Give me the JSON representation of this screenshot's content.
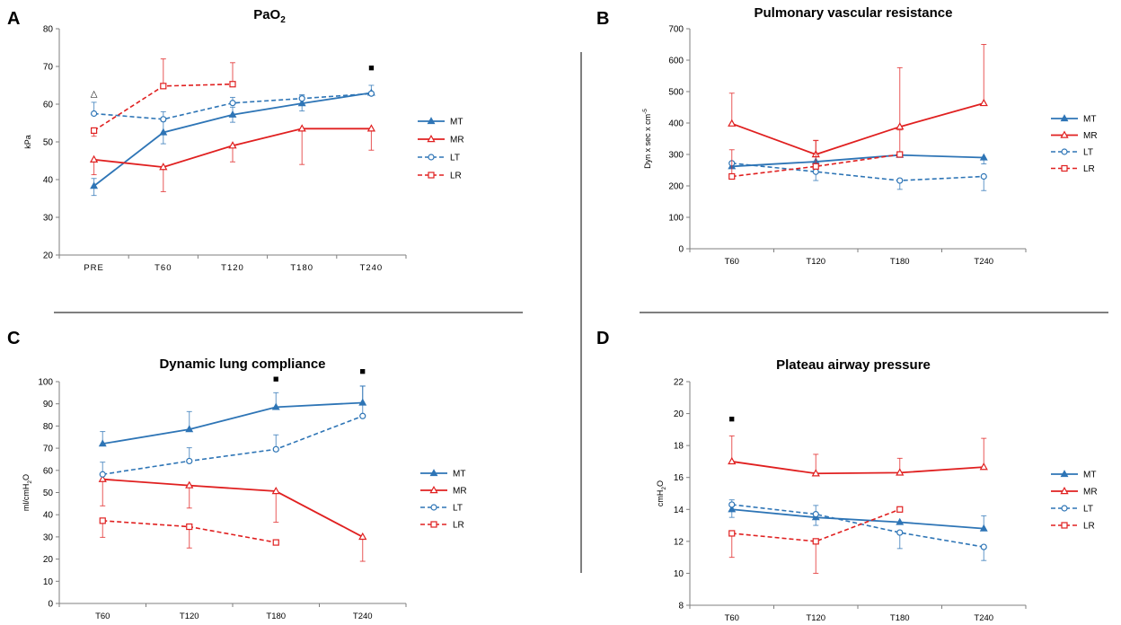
{
  "chart_data": [
    {
      "panel": "A",
      "type": "line",
      "title_main": "PaO",
      "title_sub": "2",
      "ylabel": "kPa",
      "xlabel": "",
      "categories": [
        "PRE",
        "T60",
        "T120",
        "T180",
        "T240"
      ],
      "ylim": [
        20,
        80
      ],
      "ytick_step": 10,
      "series": [
        {
          "name": "MT",
          "color": "#2e75b6",
          "dash": false,
          "marker": "triangle-filled",
          "values": [
            38.3,
            52.5,
            57.2,
            60.2,
            63.0
          ],
          "err_up": [
            2.0,
            3.0,
            2.0,
            2.0,
            2.0
          ],
          "err_down": [
            2.5,
            3.0,
            2.0,
            2.0,
            0
          ]
        },
        {
          "name": "MR",
          "color": "#e02020",
          "dash": false,
          "marker": "triangle-open",
          "values": [
            45.3,
            43.3,
            49.0,
            53.5,
            53.5
          ],
          "err_up": [
            0,
            0,
            0,
            0,
            0
          ],
          "err_down": [
            4.0,
            6.5,
            4.3,
            9.5,
            5.7
          ]
        },
        {
          "name": "LT",
          "color": "#2e75b6",
          "dash": true,
          "marker": "circle-open",
          "values": [
            57.5,
            56.0,
            60.3,
            61.5,
            62.8
          ],
          "err_up": [
            3.0,
            2.0,
            1.5,
            1.0,
            0.5
          ],
          "err_down": [
            0,
            0,
            0,
            0,
            0
          ]
        },
        {
          "name": "LR",
          "color": "#e02020",
          "dash": true,
          "marker": "square-open",
          "values": [
            53.0,
            64.8,
            65.3,
            null,
            null
          ],
          "err_up": [
            0,
            7.2,
            5.7,
            0,
            0
          ],
          "err_down": [
            1.5,
            0,
            0,
            0,
            0
          ]
        }
      ],
      "annotations": [
        {
          "symbol": "△",
          "category_index": 0,
          "y_value": 63.0
        },
        {
          "symbol": "■",
          "category_index": 4,
          "y_value": 69.8
        }
      ]
    },
    {
      "panel": "B",
      "type": "line",
      "title_main": "Pulmonary vascular resistance",
      "title_sub": "",
      "ylabel": "Dyn x sec x cm",
      "ylabel_sup": "-5",
      "xlabel": "",
      "categories": [
        "T60",
        "T120",
        "T180",
        "T240"
      ],
      "ylim": [
        0,
        700
      ],
      "ytick_step": 100,
      "series": [
        {
          "name": "MT",
          "color": "#2e75b6",
          "dash": false,
          "marker": "triangle-filled",
          "values": [
            262,
            277,
            298,
            290
          ],
          "err_up": [
            0,
            0,
            0,
            0
          ],
          "err_down": [
            0,
            0,
            0,
            20
          ]
        },
        {
          "name": "MR",
          "color": "#e02020",
          "dash": false,
          "marker": "triangle-open",
          "values": [
            398,
            300,
            388,
            463
          ],
          "err_up": [
            97,
            45,
            188,
            187
          ],
          "err_down": [
            0,
            0,
            0,
            0
          ]
        },
        {
          "name": "LT",
          "color": "#2e75b6",
          "dash": true,
          "marker": "circle-open",
          "values": [
            272,
            245,
            217,
            230
          ],
          "err_up": [
            0,
            0,
            0,
            0
          ],
          "err_down": [
            0,
            28,
            28,
            45
          ]
        },
        {
          "name": "LR",
          "color": "#e02020",
          "dash": true,
          "marker": "square-open",
          "values": [
            230,
            262,
            300,
            null
          ],
          "err_up": [
            85,
            82,
            78,
            0
          ],
          "err_down": [
            0,
            0,
            0,
            0
          ]
        }
      ],
      "annotations": []
    },
    {
      "panel": "C",
      "type": "line",
      "title_main": "Dynamic lung compliance",
      "title_sub": "",
      "ylabel": "ml/cmH",
      "ylabel_sub": "2",
      "ylabel_tail": "O",
      "xlabel": "",
      "categories": [
        "T60",
        "T120",
        "T180",
        "T240"
      ],
      "ylim": [
        0,
        100
      ],
      "ytick_step": 10,
      "series": [
        {
          "name": "MT",
          "color": "#2e75b6",
          "dash": false,
          "marker": "triangle-filled",
          "values": [
            72.0,
            78.5,
            88.5,
            90.5
          ],
          "err_up": [
            5.5,
            8.0,
            6.5,
            7.5
          ],
          "err_down": [
            0,
            0,
            0,
            0
          ]
        },
        {
          "name": "MR",
          "color": "#e02020",
          "dash": false,
          "marker": "triangle-open",
          "values": [
            56.0,
            53.2,
            50.6,
            30.0
          ],
          "err_up": [
            0,
            0,
            0,
            0
          ],
          "err_down": [
            12.0,
            10.2,
            14.0,
            11.0
          ]
        },
        {
          "name": "LT",
          "color": "#2e75b6",
          "dash": true,
          "marker": "circle-open",
          "values": [
            58.2,
            64.2,
            69.5,
            84.5
          ],
          "err_up": [
            5.5,
            6.0,
            6.5,
            13.5
          ],
          "err_down": [
            0,
            0,
            0,
            0
          ]
        },
        {
          "name": "LR",
          "color": "#e02020",
          "dash": true,
          "marker": "square-open",
          "values": [
            37.3,
            34.6,
            27.5,
            null
          ],
          "err_up": [
            0,
            0,
            0,
            0
          ],
          "err_down": [
            7.5,
            9.6,
            0,
            0
          ]
        }
      ],
      "annotations": [
        {
          "symbol": "■",
          "category_index": 2,
          "y_value": 101.5
        },
        {
          "symbol": "■",
          "category_index": 3,
          "y_value": 104.8
        }
      ]
    },
    {
      "panel": "D",
      "type": "line",
      "title_main": "Plateau airway pressure",
      "title_sub": "",
      "ylabel": "cmH",
      "ylabel_sub": "2",
      "ylabel_tail": "O",
      "xlabel": "",
      "categories": [
        "T60",
        "T120",
        "T180",
        "T240"
      ],
      "ylim": [
        8,
        22
      ],
      "ytick_step": 2,
      "series": [
        {
          "name": "MT",
          "color": "#2e75b6",
          "dash": false,
          "marker": "triangle-filled",
          "values": [
            14.0,
            13.5,
            13.2,
            12.8
          ],
          "err_up": [
            0,
            0,
            0,
            0.8
          ],
          "err_down": [
            0.5,
            0.5,
            0,
            0
          ]
        },
        {
          "name": "MR",
          "color": "#e02020",
          "dash": false,
          "marker": "triangle-open",
          "values": [
            17.0,
            16.25,
            16.3,
            16.65
          ],
          "err_up": [
            1.6,
            1.2,
            0.9,
            1.8
          ],
          "err_down": [
            0,
            0,
            0,
            0
          ]
        },
        {
          "name": "LT",
          "color": "#2e75b6",
          "dash": true,
          "marker": "circle-open",
          "values": [
            14.3,
            13.7,
            12.55,
            11.65
          ],
          "err_up": [
            0.3,
            0.55,
            0,
            0
          ],
          "err_down": [
            0,
            0,
            1.0,
            0.85
          ]
        },
        {
          "name": "LR",
          "color": "#e02020",
          "dash": true,
          "marker": "square-open",
          "values": [
            12.5,
            12.0,
            14.0,
            null
          ],
          "err_up": [
            0,
            0,
            0,
            0
          ],
          "err_down": [
            1.5,
            2.0,
            0,
            0
          ]
        }
      ],
      "annotations": [
        {
          "symbol": "■",
          "category_index": 0,
          "y_value": 19.7
        }
      ]
    }
  ]
}
